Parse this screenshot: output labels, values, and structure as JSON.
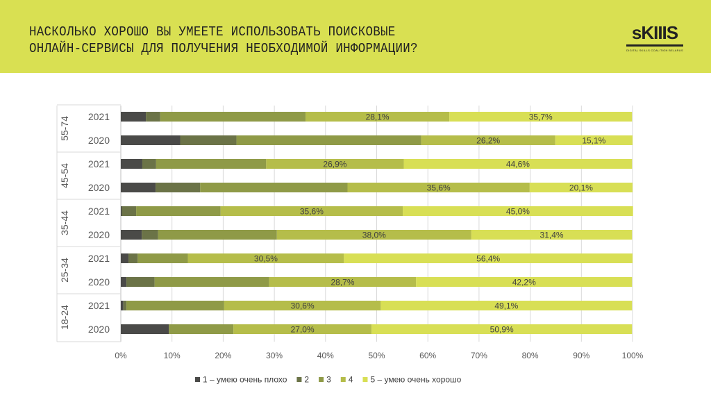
{
  "header": {
    "title_line1": "НАСКОЛЬКО ХОРОШО ВЫ УМЕЕТЕ ИСПОЛЬЗОВАТЬ ПОИСКОВЫЕ",
    "title_line2": "ОНЛАЙН-СЕРВИСЫ ДЛЯ ПОЛУЧЕНИЯ НЕОБХОДИМОЙ ИНФОРМАЦИИ?",
    "logo_text": "sKIIIS",
    "logo_subtitle": "DIGITAL SKILLS COALITION BELARUS"
  },
  "chart_data": {
    "type": "bar",
    "orientation": "horizontal",
    "stacked": "percent",
    "title": "НАСКОЛЬКО ХОРОШО ВЫ УМЕЕТЕ ИСПОЛЬЗОВАТЬ ПОИСКОВЫЕ ОНЛАЙН-СЕРВИСЫ ДЛЯ ПОЛУЧЕНИЯ НЕОБХОДИМОЙ ИНФОРМАЦИИ?",
    "groups": [
      {
        "label": "55-74",
        "rows": [
          {
            "year": "2021",
            "values": [
              4.9,
              2.8,
              28.4,
              28.1,
              35.7
            ]
          },
          {
            "year": "2020",
            "values": [
              11.6,
              11.0,
              36.1,
              26.2,
              15.1
            ]
          }
        ]
      },
      {
        "label": "45-54",
        "rows": [
          {
            "year": "2021",
            "values": [
              4.2,
              2.7,
              21.5,
              26.9,
              44.6
            ]
          },
          {
            "year": "2020",
            "values": [
              6.8,
              8.7,
              28.8,
              35.6,
              20.1
            ]
          }
        ]
      },
      {
        "label": "35-44",
        "rows": [
          {
            "year": "2021",
            "values": [
              0.2,
              2.8,
              16.5,
              35.6,
              45.0
            ]
          },
          {
            "year": "2020",
            "values": [
              4.1,
              3.2,
              23.2,
              38.0,
              31.4
            ]
          }
        ]
      },
      {
        "label": "25-34",
        "rows": [
          {
            "year": "2021",
            "values": [
              1.5,
              1.8,
              9.8,
              30.5,
              56.4
            ]
          },
          {
            "year": "2020",
            "values": [
              1.1,
              5.5,
              22.4,
              28.7,
              42.2
            ]
          }
        ]
      },
      {
        "label": "18-24",
        "rows": [
          {
            "year": "2021",
            "values": [
              0.5,
              0.6,
              19.1,
              30.6,
              49.1
            ]
          },
          {
            "year": "2020",
            "values": [
              9.4,
              0.0,
              12.6,
              27.0,
              50.9
            ]
          }
        ]
      }
    ],
    "series": [
      {
        "name": "1 – умею очень плохо",
        "color": "#4a4a48",
        "labeled": false
      },
      {
        "name": "2",
        "color": "#6b7347",
        "labeled": false
      },
      {
        "name": "3",
        "color": "#8f9a47",
        "labeled": false
      },
      {
        "name": "4",
        "color": "#b5bd4a",
        "labeled": true
      },
      {
        "name": "5 – умею очень хорошо",
        "color": "#d8df55",
        "labeled": true
      }
    ],
    "xlim": [
      0,
      100
    ],
    "xticks": [
      "0%",
      "10%",
      "20%",
      "30%",
      "40%",
      "50%",
      "60%",
      "70%",
      "80%",
      "90%",
      "100%"
    ],
    "grid": true,
    "legend": "bottom"
  }
}
